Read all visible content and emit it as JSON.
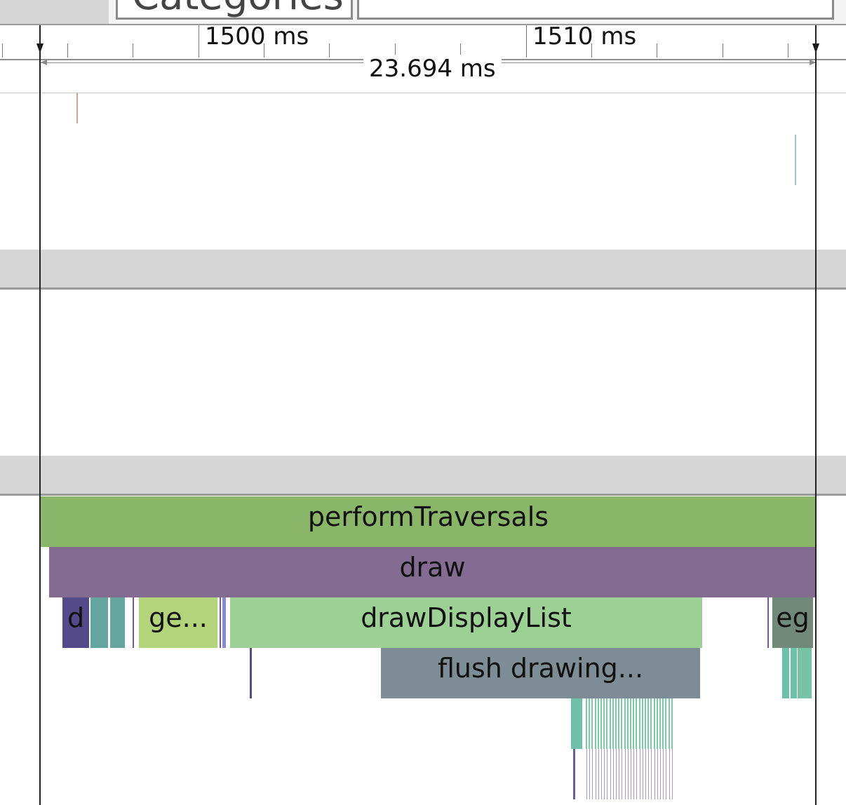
{
  "toolbar": {
    "categories_button_label": "Categories"
  },
  "ruler": {
    "label_1500": "1500 ms",
    "label_1510": "1510 ms"
  },
  "selection": {
    "duration_label": "23.694 ms"
  },
  "slices": {
    "perform_traversals": "performTraversals",
    "draw": "draw",
    "d": "d",
    "ge": "ge...",
    "draw_display_list": "drawDisplayList",
    "eg": "eg",
    "flush_drawing": "flush drawing..."
  },
  "colors": {
    "perform_traversals": "#8ab66a",
    "draw": "#836b91",
    "draw_display_list": "#9dd095",
    "flush_drawing": "#7e8c96",
    "ge": "#b3d47a",
    "eg": "#71897a"
  }
}
